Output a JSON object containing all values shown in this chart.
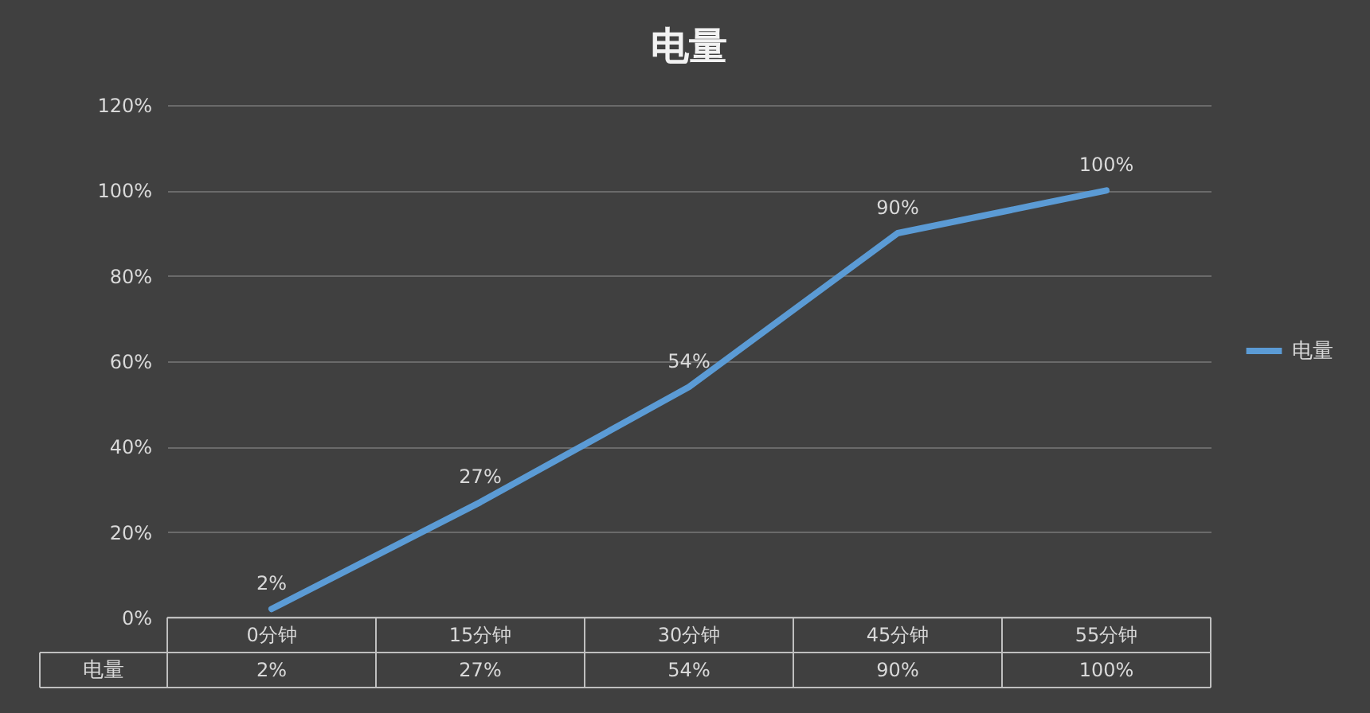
{
  "chart_data": {
    "type": "line",
    "title": "电量",
    "categories": [
      "0分钟",
      "15分钟",
      "30分钟",
      "45分钟",
      "55分钟"
    ],
    "series": [
      {
        "name": "电量",
        "color": "#5b9bd5",
        "values": [
          2,
          27,
          54,
          90,
          100
        ],
        "value_labels": [
          "2%",
          "27%",
          "54%",
          "90%",
          "100%"
        ]
      }
    ],
    "ylim": [
      0,
      120
    ],
    "yticks": [
      {
        "value": 0,
        "label": "0%"
      },
      {
        "value": 20,
        "label": "20%"
      },
      {
        "value": 40,
        "label": "40%"
      },
      {
        "value": 60,
        "label": "60%"
      },
      {
        "value": 80,
        "label": "80%"
      },
      {
        "value": 100,
        "label": "100%"
      },
      {
        "value": 120,
        "label": "120%"
      }
    ],
    "grid": "y",
    "legend": "right",
    "marker": "none",
    "line_style": "solid"
  }
}
